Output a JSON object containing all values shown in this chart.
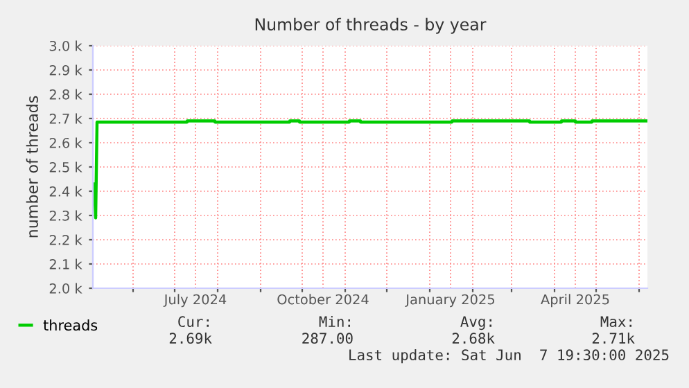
{
  "chart_data": {
    "type": "line",
    "title": "Number of threads - by year",
    "ylabel": "number of threads",
    "x": [
      "2024-05-04",
      "2024-05-05",
      "2024-05-06",
      "2024-07-10",
      "2024-07-10T01:00",
      "2024-07-30",
      "2024-07-30T01:00",
      "2024-09-22",
      "2024-09-22T01:00",
      "2024-09-29",
      "2024-09-29T01:00",
      "2024-11-04",
      "2024-11-04T01:00",
      "2024-11-12",
      "2024-11-12T01:00",
      "2025-01-17",
      "2025-01-17T01:00",
      "2025-02-03",
      "2025-02-03T01:00",
      "2025-03-14",
      "2025-03-14T01:00",
      "2025-04-06",
      "2025-04-06T01:00",
      "2025-04-16",
      "2025-04-16T01:00",
      "2025-04-28",
      "2025-04-28T01:00",
      "2025-06-06"
    ],
    "series": [
      {
        "name": "threads",
        "color": "#00cc00",
        "values": [
          2430,
          2290,
          2685,
          2685,
          2690,
          2690,
          2685,
          2685,
          2690,
          2690,
          2685,
          2685,
          2690,
          2690,
          2685,
          2685,
          2690,
          2690,
          2690,
          2690,
          2685,
          2685,
          2690,
          2690,
          2685,
          2685,
          2690,
          2690
        ]
      }
    ],
    "xlim": [
      "2024-05-03",
      "2025-06-07"
    ],
    "xticks": [
      {
        "value": "2024-06-01",
        "label": null
      },
      {
        "value": "2024-07-01",
        "label": null
      },
      {
        "value": "2024-07-16",
        "label": "July 2024"
      },
      {
        "value": "2024-08-01",
        "label": null
      },
      {
        "value": "2024-09-01",
        "label": null
      },
      {
        "value": "2024-10-01",
        "label": null
      },
      {
        "value": "2024-10-16",
        "label": "October 2024"
      },
      {
        "value": "2024-11-01",
        "label": null
      },
      {
        "value": "2024-12-01",
        "label": null
      },
      {
        "value": "2025-01-01",
        "label": null
      },
      {
        "value": "2025-01-16",
        "label": "January 2025"
      },
      {
        "value": "2025-02-01",
        "label": null
      },
      {
        "value": "2025-03-01",
        "label": null
      },
      {
        "value": "2025-04-01",
        "label": null
      },
      {
        "value": "2025-04-16",
        "label": "April 2025"
      },
      {
        "value": "2025-05-01",
        "label": null
      },
      {
        "value": "2025-06-01",
        "label": null
      }
    ],
    "ylim": [
      2000,
      3000
    ],
    "yticks": [
      {
        "value": 2000,
        "label": "2.0 k"
      },
      {
        "value": 2100,
        "label": "2.1 k"
      },
      {
        "value": 2200,
        "label": "2.2 k"
      },
      {
        "value": 2300,
        "label": "2.3 k"
      },
      {
        "value": 2400,
        "label": "2.4 k"
      },
      {
        "value": 2500,
        "label": "2.5 k"
      },
      {
        "value": 2600,
        "label": "2.6 k"
      },
      {
        "value": 2700,
        "label": "2.7 k"
      },
      {
        "value": 2800,
        "label": "2.8 k"
      },
      {
        "value": 2900,
        "label": "2.9 k"
      },
      {
        "value": 3000,
        "label": "3.0 k"
      }
    ],
    "grid": true,
    "legend": "bottom left",
    "annotations": [
      "Cur:",
      "Min:",
      "Avg:",
      "Max:",
      "2.69k",
      "287.00",
      "2.68k",
      "2.71k",
      "Last update: Sat Jun  7 19:30:00 2025"
    ]
  }
}
